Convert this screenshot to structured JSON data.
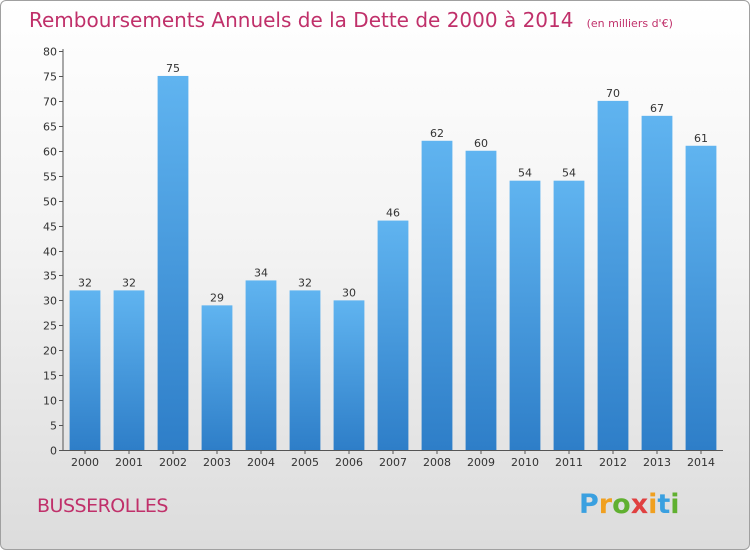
{
  "chart_data": {
    "type": "bar",
    "title": "Remboursements Annuels de la Dette de 2000 à 2014",
    "subtitle": "(en milliers d'€)",
    "xlabel": "",
    "ylabel": "",
    "categories": [
      "2000",
      "2001",
      "2002",
      "2003",
      "2004",
      "2005",
      "2006",
      "2007",
      "2008",
      "2009",
      "2010",
      "2011",
      "2012",
      "2013",
      "2014"
    ],
    "values": [
      32,
      32,
      75,
      29,
      34,
      32,
      30,
      46,
      62,
      60,
      54,
      54,
      70,
      67,
      61
    ],
    "ylim": [
      0,
      80
    ],
    "ytick_step": 5,
    "grid": false,
    "bar_color": "#4a9ee0",
    "bar_color_light": "#60b4f0",
    "bar_color_dark": "#2e7ec8",
    "title_color": "#c0306a"
  },
  "place_name": "BUSSEROLLES",
  "logo": {
    "letters": [
      "P",
      "r",
      "o",
      "x",
      "i",
      "t",
      "i"
    ],
    "colors": [
      "#3aa0e0",
      "#f0a020",
      "#60b030",
      "#e04040",
      "#f0a020",
      "#3aa0e0",
      "#60b030"
    ]
  }
}
